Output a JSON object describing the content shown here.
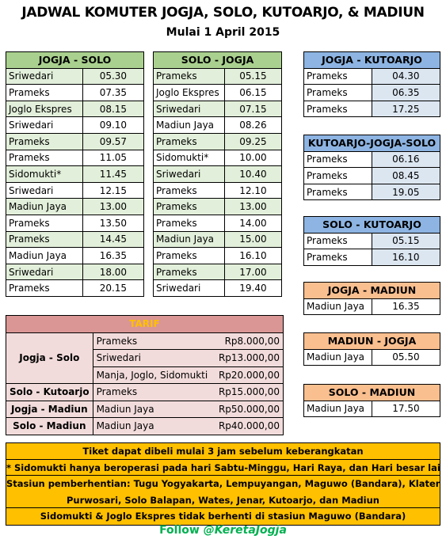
{
  "header": {
    "title": "JADWAL KOMUTER JOGJA, SOLO, KUTOARJO, & MADIUN",
    "subtitle": "Mulai 1 April 2015"
  },
  "jogja_solo": {
    "title": "JOGJA - SOLO",
    "rows": [
      {
        "train": "Sriwedari",
        "time": "05.30"
      },
      {
        "train": "Prameks",
        "time": "07.35"
      },
      {
        "train": "Joglo Ekspres",
        "time": "08.15"
      },
      {
        "train": "Sriwedari",
        "time": "09.10"
      },
      {
        "train": "Prameks",
        "time": "09.57"
      },
      {
        "train": "Prameks",
        "time": "11.05"
      },
      {
        "train": "Sidomukti*",
        "time": "11.45"
      },
      {
        "train": "Sriwedari",
        "time": "12.15"
      },
      {
        "train": "Madiun Jaya",
        "time": "13.00"
      },
      {
        "train": "Prameks",
        "time": "13.50"
      },
      {
        "train": "Prameks",
        "time": "14.45"
      },
      {
        "train": "Madiun Jaya",
        "time": "16.35"
      },
      {
        "train": "Sriwedari",
        "time": "18.00"
      },
      {
        "train": "Prameks",
        "time": "20.15"
      }
    ]
  },
  "solo_jogja": {
    "title": "SOLO - JOGJA",
    "rows": [
      {
        "train": "Prameks",
        "time": "05.15"
      },
      {
        "train": "Joglo Ekspres",
        "time": "06.15"
      },
      {
        "train": "Sriwedari",
        "time": "07.15"
      },
      {
        "train": "Madiun Jaya",
        "time": "08.26"
      },
      {
        "train": "Prameks",
        "time": "09.25"
      },
      {
        "train": "Sidomukti*",
        "time": "10.00"
      },
      {
        "train": "Sriwedari",
        "time": "10.40"
      },
      {
        "train": "Prameks",
        "time": "12.10"
      },
      {
        "train": "Prameks",
        "time": "13.00"
      },
      {
        "train": "Prameks",
        "time": "14.00"
      },
      {
        "train": "Madiun Jaya",
        "time": "15.00"
      },
      {
        "train": "Prameks",
        "time": "16.10"
      },
      {
        "train": "Prameks",
        "time": "17.00"
      },
      {
        "train": "Sriwedari",
        "time": "19.40"
      }
    ]
  },
  "jogja_kutoarjo": {
    "title": "JOGJA - KUTOARJO",
    "rows": [
      {
        "train": "Prameks",
        "time": "04.30"
      },
      {
        "train": "Prameks",
        "time": "06.35"
      },
      {
        "train": "Prameks",
        "time": "17.25"
      }
    ]
  },
  "kutoarjo_jogja_solo": {
    "title": "KUTOARJO-JOGJA-SOLO",
    "rows": [
      {
        "train": "Prameks",
        "time": "06.16"
      },
      {
        "train": "Prameks",
        "time": "08.45"
      },
      {
        "train": "Prameks",
        "time": "19.05"
      }
    ]
  },
  "solo_kutoarjo": {
    "title": "SOLO - KUTOARJO",
    "rows": [
      {
        "train": "Prameks",
        "time": "05.15"
      },
      {
        "train": "Prameks",
        "time": "16.10"
      }
    ]
  },
  "jogja_madiun": {
    "title": "JOGJA - MADIUN",
    "rows": [
      {
        "train": "Madiun Jaya",
        "time": "16.35"
      }
    ]
  },
  "madiun_jogja": {
    "title": "MADIUN - JOGJA",
    "rows": [
      {
        "train": "Madiun Jaya",
        "time": "05.50"
      }
    ]
  },
  "solo_madiun": {
    "title": "SOLO - MADIUN",
    "rows": [
      {
        "train": "Madiun Jaya",
        "time": "17.50"
      }
    ]
  },
  "tarif": {
    "title": "TARIF",
    "jogja_solo": {
      "route": "Jogja - Solo",
      "items": [
        {
          "cls": "Prameks",
          "price": "Rp8.000,00"
        },
        {
          "cls": "Sriwedari",
          "price": "Rp13.000,00"
        },
        {
          "cls": "Manja, Joglo, Sidomukti",
          "price": "Rp20.000,00"
        }
      ]
    },
    "solo_kutoarjo": {
      "route": "Solo - Kutoarjo",
      "cls": "Prameks",
      "price": "Rp15.000,00"
    },
    "jogja_madiun": {
      "route": "Jogja - Madiun",
      "cls": "Madiun Jaya",
      "price": "Rp50.000,00"
    },
    "solo_madiun": {
      "route": "Solo - Madiun",
      "cls": "Madiun Jaya",
      "price": "Rp40.000,00"
    }
  },
  "notes": {
    "ticket": "Tiket dapat dibeli mulai 3 jam sebelum keberangkatan",
    "sidomukti": "* Sidomukti hanya beroperasi pada hari Sabtu-Minggu, Hari Raya, dan Hari besar lainnya",
    "stations_1": "Stasiun pemberhentian: Tugu Yogyakarta, Lempuyangan, Maguwo (Bandara), Klaten,",
    "stations_2": "Purwosari, Solo Balapan, Wates, Jenar, Kutoarjo, dan Madiun",
    "maguwo": "Sidomukti & Joglo Ekspres tidak berhenti di stasiun Maguwo (Bandara)"
  },
  "footer": {
    "follow": "Follow",
    "handle": "@KeretaJogja"
  },
  "colors": {
    "green_header": "#a9d08e",
    "green_row": "#e2efda",
    "blue_header": "#8db4e2",
    "blue_cell": "#dce6f1",
    "orange_header": "#fabf8f",
    "tarif_header": "#da9694",
    "tarif_title_text": "#ffc000",
    "tarif_cell": "#f2dcdb",
    "notes_bg": "#ffc000",
    "footer_text": "#00b050"
  }
}
